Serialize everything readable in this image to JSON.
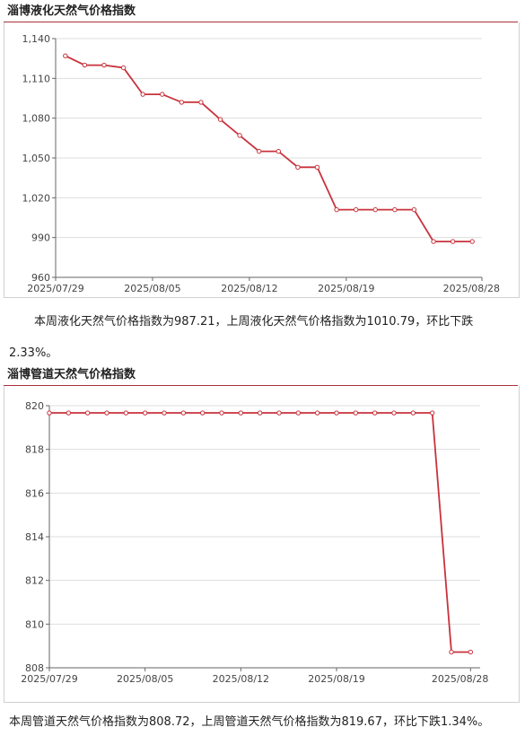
{
  "lng": {
    "title": "淄博液化天然气价格指数",
    "summary_line1": "本周液化天然气价格指数为987.21，上周液化天然气价格指数为1010.79，环比下跌",
    "summary_line2": "2.33%。"
  },
  "pipeline": {
    "title": "淄博管道天然气价格指数",
    "summary": "本周管道天然气价格指数为808.72，上周管道天然气价格指数为819.67，环比下跌1.34%。"
  },
  "colors": {
    "series": "#c9323c",
    "title_rule": "#a8323a",
    "grid": "#dddddd"
  },
  "chart_data": [
    {
      "type": "line",
      "x_tick_labels": [
        "2025/07/29",
        "2025/08/05",
        "2025/08/12",
        "2025/08/19",
        "2025/08/28"
      ],
      "x_tick_positions": [
        0,
        5,
        10,
        15,
        22
      ],
      "x_range": [
        0,
        22
      ],
      "ylim": [
        960,
        1140
      ],
      "y_ticks": [
        960,
        990,
        1020,
        1050,
        1080,
        1110,
        1140
      ],
      "y_tick_labels": [
        "960",
        "990",
        "1,020",
        "1,050",
        "1,080",
        "1,110",
        "1,140"
      ],
      "grid": true,
      "series": [
        {
          "x": [
            0.5,
            1.5,
            2.5,
            3.5,
            4.5,
            5.5,
            6.5,
            7.5,
            8.5,
            9.5,
            10.5,
            11.5,
            12.5,
            13.5,
            14.5,
            15.5,
            16.5,
            17.5,
            18.5,
            19.5,
            20.5,
            21.5
          ],
          "values": [
            1127,
            1120,
            1120,
            1118,
            1098,
            1098,
            1092,
            1092,
            1079,
            1067,
            1055,
            1055,
            1043,
            1043,
            1011,
            1011,
            1011,
            1011,
            1011,
            987,
            987,
            987
          ]
        }
      ]
    },
    {
      "type": "line",
      "x_tick_labels": [
        "2025/07/29",
        "2025/08/05",
        "2025/08/12",
        "2025/08/19",
        "2025/08/28"
      ],
      "x_tick_positions": [
        0,
        5,
        10,
        15,
        22
      ],
      "x_range": [
        0,
        22.5
      ],
      "ylim": [
        808,
        820
      ],
      "y_ticks": [
        808,
        810,
        812,
        814,
        816,
        818,
        820
      ],
      "y_tick_labels": [
        "808",
        "810",
        "812",
        "814",
        "816",
        "818",
        "820"
      ],
      "grid": true,
      "series": [
        {
          "x": [
            0,
            1,
            2,
            3,
            4,
            5,
            6,
            7,
            8,
            9,
            10,
            11,
            12,
            13,
            14,
            15,
            16,
            17,
            18,
            19,
            20,
            21,
            22
          ],
          "values": [
            819.67,
            819.67,
            819.67,
            819.67,
            819.67,
            819.67,
            819.67,
            819.67,
            819.67,
            819.67,
            819.67,
            819.67,
            819.67,
            819.67,
            819.67,
            819.67,
            819.67,
            819.67,
            819.67,
            819.67,
            819.67,
            808.72,
            808.72
          ]
        }
      ]
    }
  ]
}
